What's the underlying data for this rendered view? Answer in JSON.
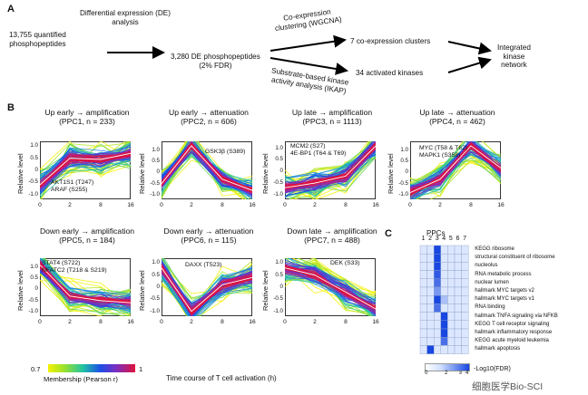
{
  "panel_a": {
    "letter": "A",
    "quantified": [
      "13,755 quantified",
      "phosphopeptides"
    ],
    "de_analysis": [
      "Differential expression (DE)",
      "analysis"
    ],
    "de_result": [
      "3,280 DE phosphopeptides",
      "(2% FDR)"
    ],
    "wgcna": [
      "Co-expression",
      "clustering (WGCNA)"
    ],
    "ikap": [
      "Substrate-based kinase",
      "activity analysis (IKAP)"
    ],
    "clusters": "7 co-expression clusters",
    "kinases": "34 activated kinases",
    "integrated": [
      "Integrated",
      "kinase",
      "network"
    ]
  },
  "panel_b": {
    "letter": "B",
    "ylabel": "Relative level",
    "xticks": [
      "0",
      "2",
      "8",
      "16"
    ],
    "yticks": [
      "1.0",
      "0.5",
      "0",
      "-0.5",
      "-1.0"
    ],
    "plots": [
      {
        "title1": "Up early → amplification",
        "title2": "(PPC1, n = 233)",
        "ann": [
          "AKT1S1 (T247)",
          "ARAF (S255)"
        ]
      },
      {
        "title1": "Up early → attenuation",
        "title2": "(PPC2, n = 606)",
        "ann": [
          "GSK3β (S389)"
        ]
      },
      {
        "title1": "Up late → amplification",
        "title2": "(PPC3, n = 1113)",
        "ann": [
          "MCM2 (S27)",
          "4E-BP1 (T64 & T69)"
        ]
      },
      {
        "title1": "Up late → attenuation",
        "title2": "(PPC4, n = 462)",
        "ann": [
          "MYC (T58 & T62)",
          "MAPK1 (S358)"
        ]
      },
      {
        "title1": "Down early → amplification",
        "title2": "(PPC5, n = 184)",
        "ann": [
          "STAT4 (S722)",
          "NFATC2 (T218 & S219)"
        ]
      },
      {
        "title1": "Down early → attenuation",
        "title2": "(PPC6, n = 115)",
        "ann": [
          "DAXX (T523)"
        ]
      },
      {
        "title1": "Down late → amplification",
        "title2": "(PPC7, n = 488)",
        "ann": [
          "DEK (S33)"
        ]
      }
    ],
    "xlabel": "Time course of T cell activation (h)",
    "colorbar": {
      "min": "0.7",
      "max": "1",
      "label": "Membership (Pearson r)"
    }
  },
  "panel_c": {
    "letter": "C",
    "title": "PPCs",
    "columns": [
      "1",
      "2",
      "3",
      "4",
      "5",
      "6",
      "7"
    ],
    "terms": [
      "KEGG ribosome",
      "structural constituent of ribosome",
      "nucleolus",
      "RNA metabolic process",
      "nuclear lumen",
      "hallmark MYC targets v2",
      "hallmark MYC targets v1",
      "RNA binding",
      "hallmark TNFA signaling via NFKB",
      "KEGG T cell receptor signaling",
      "hallmark inflammatory response",
      "KEGG acute myeloid leukemia",
      "hallmark apoptosis"
    ],
    "legend_ticks": [
      "0",
      "2",
      "4"
    ],
    "legend_label": "-Log10(FDR)",
    "legend_tick_ge": "≥"
  },
  "watermark": "细胞医学Bio-SCI",
  "chart_data": [
    {
      "type": "line",
      "title": "Up early → amplification (PPC1, n = 233)",
      "x": [
        0,
        2,
        8,
        16
      ],
      "y": [
        -0.6,
        0.5,
        0.45,
        0.7
      ],
      "xlabel": "Time course of T cell activation (h)",
      "ylabel": "Relative level",
      "ylim": [
        -1.2,
        1.2
      ]
    },
    {
      "type": "line",
      "title": "Up early → attenuation (PPC2, n = 606)",
      "x": [
        0,
        2,
        8,
        16
      ],
      "y": [
        -0.5,
        1.2,
        -0.3,
        -0.8
      ],
      "ylabel": "Relative level",
      "ylim": [
        -1.2,
        1.4
      ]
    },
    {
      "type": "line",
      "title": "Up late → amplification (PPC3, n = 1113)",
      "x": [
        0,
        2,
        8,
        16
      ],
      "y": [
        -0.7,
        -0.5,
        -0.2,
        1.1
      ],
      "ylabel": "Relative level",
      "ylim": [
        -1.2,
        1.3
      ]
    },
    {
      "type": "line",
      "title": "Up late → attenuation (PPC4, n = 462)",
      "x": [
        0,
        2,
        8,
        16
      ],
      "y": [
        -0.9,
        -0.3,
        1.2,
        0.2
      ],
      "ylabel": "Relative level",
      "ylim": [
        -1.2,
        1.4
      ]
    },
    {
      "type": "line",
      "title": "Down early → amplification (PPC5, n = 184)",
      "x": [
        0,
        2,
        8,
        16
      ],
      "y": [
        1.1,
        -0.3,
        -0.5,
        -0.6
      ],
      "ylabel": "Relative level",
      "ylim": [
        -1.2,
        1.4
      ]
    },
    {
      "type": "line",
      "title": "Down early → attenuation (PPC6, n = 115)",
      "x": [
        0,
        2,
        8,
        16
      ],
      "y": [
        0.8,
        -1.0,
        0.1,
        0.4
      ],
      "ylabel": "Relative level",
      "ylim": [
        -1.2,
        1.2
      ]
    },
    {
      "type": "line",
      "title": "Down late → amplification (PPC7, n = 488)",
      "x": [
        0,
        2,
        8,
        16
      ],
      "y": [
        0.8,
        0.5,
        -0.2,
        -0.9
      ],
      "ylabel": "Relative level",
      "ylim": [
        -1.2,
        1.2
      ]
    },
    {
      "type": "heatmap",
      "title": "PPCs enrichment",
      "columns": [
        "1",
        "2",
        "3",
        "4",
        "5",
        "6",
        "7"
      ],
      "rows": [
        "KEGG ribosome",
        "structural constituent of ribosome",
        "nucleolus",
        "RNA metabolic process",
        "nuclear lumen",
        "hallmark MYC targets v2",
        "hallmark MYC targets v1",
        "RNA binding",
        "hallmark TNFA signaling via NFKB",
        "KEGG T cell receptor signaling",
        "hallmark inflammatory response",
        "KEGG acute myeloid leukemia",
        "hallmark apoptosis"
      ],
      "values": [
        [
          0,
          0,
          4,
          0,
          0,
          0,
          0
        ],
        [
          0,
          0,
          4,
          0,
          0,
          0,
          0
        ],
        [
          0,
          0,
          4,
          0,
          0,
          0,
          0
        ],
        [
          0,
          0,
          3.5,
          0,
          0,
          0,
          0
        ],
        [
          0,
          0,
          3,
          0,
          0,
          0,
          0
        ],
        [
          0,
          0,
          2,
          0,
          0,
          0,
          0
        ],
        [
          0,
          0,
          4,
          1,
          0,
          0,
          0
        ],
        [
          0,
          0,
          3,
          0,
          0,
          0,
          0
        ],
        [
          0,
          0,
          0,
          4,
          0,
          0,
          0
        ],
        [
          0,
          0,
          0,
          4,
          0,
          0,
          0
        ],
        [
          0,
          0,
          0,
          4,
          0,
          0,
          0
        ],
        [
          0,
          0,
          0,
          3,
          0,
          0,
          0
        ],
        [
          0,
          4,
          0,
          0,
          0,
          0,
          0
        ]
      ],
      "legend": "-Log10(FDR)",
      "vmin": 0,
      "vmax": 4
    }
  ]
}
